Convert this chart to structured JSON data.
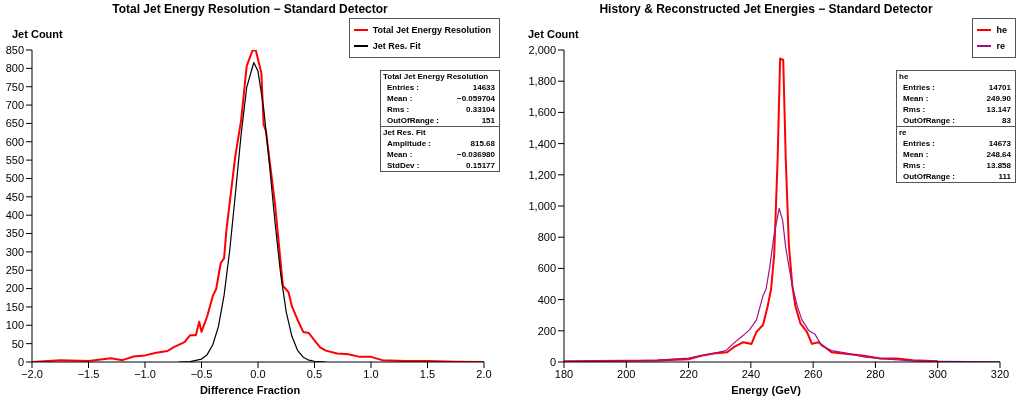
{
  "chart_data": [
    {
      "type": "line",
      "title": "Total Jet Energy Resolution − Standard Detector",
      "xlabel": "Difference Fraction",
      "ylabel": "Jet Count",
      "xlim": [
        -2,
        2
      ],
      "xticks": [
        {
          "value": -2,
          "label": "−2.0"
        },
        {
          "value": -1.5,
          "label": "−1.5"
        },
        {
          "value": -1,
          "label": "−1.0"
        },
        {
          "value": -0.5,
          "label": "−0.5"
        },
        {
          "value": 0,
          "label": "0.0"
        },
        {
          "value": 0.5,
          "label": "0.5"
        },
        {
          "value": 1,
          "label": "1.0"
        },
        {
          "value": 1.5,
          "label": "1.5"
        },
        {
          "value": 2,
          "label": "2.0"
        }
      ],
      "ylim": [
        0,
        850
      ],
      "yticks": [
        0,
        50,
        100,
        150,
        200,
        250,
        300,
        350,
        400,
        450,
        500,
        550,
        600,
        650,
        700,
        750,
        800,
        850
      ],
      "legend": "top right",
      "grid": false,
      "series": [
        {
          "name": "Total Jet Energy Resolution",
          "color": "#ff0000",
          "x": [
            -2,
            -1.75,
            -1.5,
            -1.3,
            -1.2,
            -1.1,
            -1,
            -0.9,
            -0.8,
            -0.75,
            -0.65,
            -0.6,
            -0.55,
            -0.52,
            -0.5,
            -0.45,
            -0.4,
            -0.37,
            -0.33,
            -0.3,
            -0.28,
            -0.2,
            -0.15,
            -0.1,
            -0.05,
            -0.02,
            0.03,
            0.05,
            0.07,
            0.15,
            0.22,
            0.27,
            0.3,
            0.35,
            0.4,
            0.45,
            0.5,
            0.55,
            0.6,
            0.7,
            0.8,
            0.9,
            1,
            1.1,
            1.3,
            1.5,
            1.75,
            2
          ],
          "values": [
            0,
            5,
            3,
            10,
            5,
            15,
            18,
            25,
            30,
            40,
            54,
            73,
            73,
            110,
            82,
            124,
            180,
            199,
            269,
            283,
            358,
            563,
            657,
            806,
            848,
            850,
            787,
            647,
            629,
            432,
            208,
            190,
            152,
            115,
            82,
            79,
            59,
            40,
            31,
            23,
            21,
            14,
            14,
            5,
            3,
            3,
            1,
            0
          ]
        },
        {
          "name": "Jet Res. Fit",
          "color": "#000000",
          "x": [
            -0.7,
            -0.6,
            -0.5,
            -0.45,
            -0.4,
            -0.35,
            -0.3,
            -0.25,
            -0.2,
            -0.15,
            -0.1,
            -0.037,
            0,
            0.05,
            0.1,
            0.15,
            0.2,
            0.25,
            0.3,
            0.35,
            0.4,
            0.45,
            0.5,
            0.6
          ],
          "values": [
            0,
            1,
            8,
            20,
            47,
            97,
            182,
            305,
            458,
            618,
            748,
            816,
            792,
            692,
            542,
            382,
            241,
            136,
            70,
            32,
            13,
            5,
            2,
            0
          ]
        }
      ],
      "annotations": [
        "Total Jet Energy Resolution",
        "Entries : 14633",
        "Mean : −0.059704",
        "Rms : 0.33104",
        "OutOfRange : 151",
        "Jet Res. Fit",
        "Amplitude : 815.68",
        "Mean : −0.036980",
        "StdDev : 0.15177"
      ]
    },
    {
      "type": "line",
      "title": "History & Reconstructed Jet Energies − Standard Detector",
      "xlabel": "Energy (GeV)",
      "ylabel": "Jet Count",
      "xlim": [
        180,
        320
      ],
      "xticks": [
        180,
        200,
        220,
        240,
        260,
        280,
        300,
        320
      ],
      "ylim": [
        0,
        2000
      ],
      "yticks": [
        0,
        200,
        400,
        600,
        800,
        {
          "value": 1000,
          "label": "1,000"
        },
        {
          "value": 1200,
          "label": "1,200"
        },
        {
          "value": 1400,
          "label": "1,400"
        },
        {
          "value": 1600,
          "label": "1,600"
        },
        {
          "value": 1800,
          "label": "1,800"
        },
        {
          "value": 2000,
          "label": "2,000"
        }
      ],
      "legend": "top right",
      "grid": false,
      "series": [
        {
          "name": "he",
          "color": "#ff0000",
          "x": [
            180,
            200,
            210,
            220,
            224,
            228,
            232.4,
            234.5,
            237.6,
            240.2,
            241.8,
            243.9,
            245.4,
            246.5,
            247.5,
            248.6,
            249.4,
            250.4,
            251.2,
            252.2,
            253.3,
            254.3,
            255.9,
            258,
            259.6,
            261.7,
            263.8,
            265.9,
            271.1,
            276.3,
            281.6,
            286.8,
            292,
            300
          ],
          "values": [
            5,
            8,
            10,
            18,
            40,
            55,
            62,
            95,
            127,
            116,
            193,
            237,
            358,
            468,
            688,
            1303,
            1945,
            1936,
            1303,
            754,
            490,
            358,
            248,
            193,
            116,
            127,
            95,
            62,
            51,
            40,
            22,
            22,
            11,
            5
          ]
        },
        {
          "name": "re",
          "color": "#a0128c",
          "x": [
            180,
            200,
            210,
            220,
            228,
            232,
            234.5,
            237.6,
            239.7,
            241.8,
            243.9,
            244.9,
            246,
            247.5,
            249.1,
            250.2,
            251.2,
            253.3,
            254.9,
            256.4,
            258.5,
            260.6,
            262.7,
            265.9,
            271.1,
            276.3,
            281.6,
            292,
            300,
            320
          ],
          "values": [
            3,
            8,
            12,
            25,
            55,
            73,
            121,
            171,
            209,
            270,
            424,
            468,
            600,
            820,
            985,
            908,
            732,
            490,
            358,
            270,
            204,
            178,
            105,
            73,
            55,
            33,
            22,
            7,
            4,
            1
          ]
        }
      ],
      "annotations": [
        "he",
        "Entries : 14701",
        "Mean : 249.90",
        "Rms : 13.147",
        "OutOfRange : 83",
        "re",
        "Entries : 14673",
        "Mean : 248.64",
        "Rms : 13.858",
        "OutOfRange : 111"
      ]
    }
  ]
}
